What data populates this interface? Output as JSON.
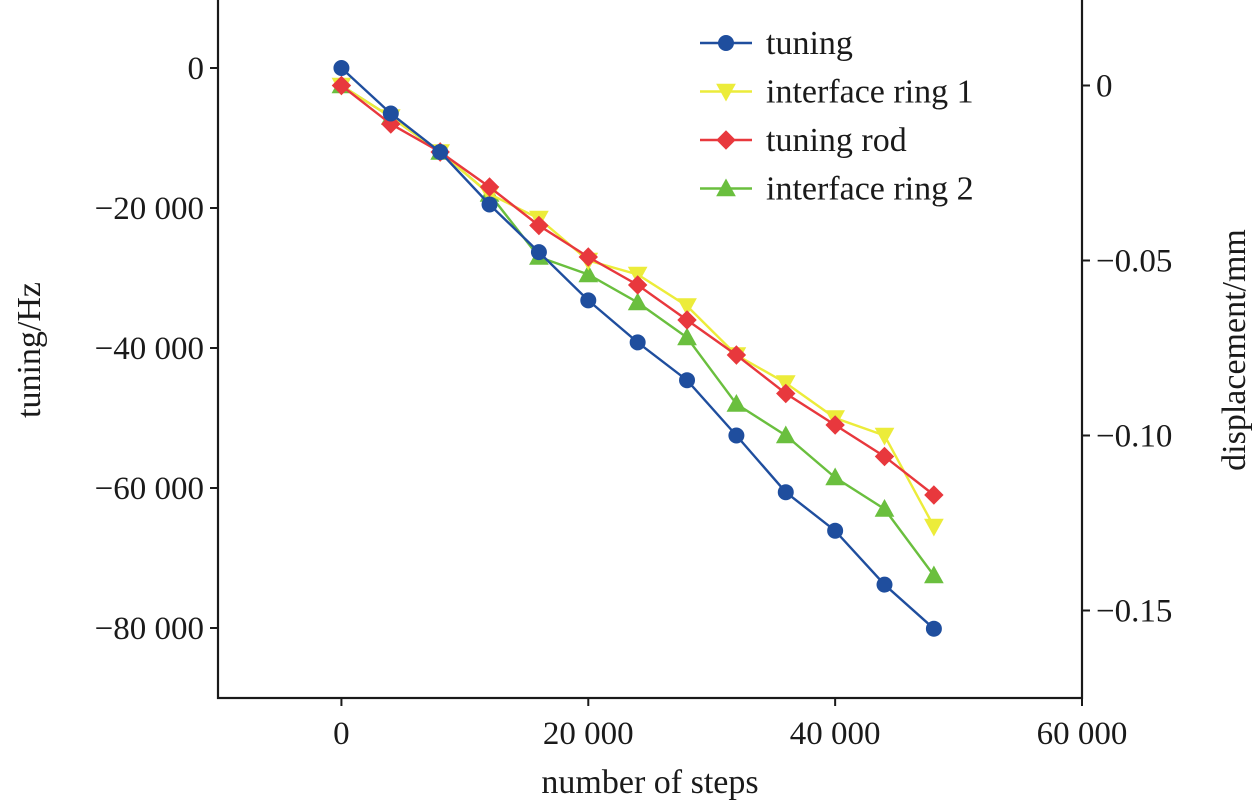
{
  "chart_data": {
    "type": "line",
    "xlabel": "number of steps",
    "ylabel_left": "tuning/Hz",
    "ylabel_right": "displacement/mm",
    "xlim": [
      -10000,
      60000
    ],
    "ylim_left": [
      -90000,
      10000
    ],
    "ylim_right": [
      -0.175,
      0.025
    ],
    "x_ticks": [
      {
        "value": 0,
        "label": "0"
      },
      {
        "value": 20000,
        "label": "20 000"
      },
      {
        "value": 40000,
        "label": "40 000"
      },
      {
        "value": 60000,
        "label": "60 000"
      }
    ],
    "y_left_ticks": [
      {
        "value": 0,
        "label": "0"
      },
      {
        "value": -20000,
        "label": "−20 000"
      },
      {
        "value": -40000,
        "label": "−40 000"
      },
      {
        "value": -60000,
        "label": "−60 000"
      },
      {
        "value": -80000,
        "label": "−80 000"
      }
    ],
    "y_right_ticks": [
      {
        "value": 0,
        "label": "0"
      },
      {
        "value": -0.05,
        "label": "−0.05"
      },
      {
        "value": -0.1,
        "label": "−0.10"
      },
      {
        "value": -0.15,
        "label": "−0.15"
      }
    ],
    "grid": false,
    "legend_position": "top-right",
    "x": [
      0,
      4000,
      8000,
      12000,
      16000,
      20000,
      24000,
      28000,
      32000,
      36000,
      40000,
      44000,
      48000
    ],
    "series": [
      {
        "name": "tuning",
        "axis": "left",
        "color": "#1f4e9e",
        "marker": "circle",
        "values": [
          0,
          -6500,
          -12000,
          -19500,
          -26300,
          -33200,
          -39200,
          -44600,
          -52500,
          -60600,
          -66100,
          -73800,
          -80100
        ]
      },
      {
        "name": "interface ring 1",
        "axis": "right",
        "color": "#ecec3a",
        "marker": "triangle-down",
        "values": [
          0,
          -0.009,
          -0.019,
          -0.031,
          -0.038,
          -0.05,
          -0.054,
          -0.063,
          -0.077,
          -0.085,
          -0.095,
          -0.1,
          -0.126
        ]
      },
      {
        "name": "tuning rod",
        "axis": "right",
        "color": "#e8383d",
        "marker": "diamond",
        "values": [
          0,
          -0.011,
          -0.019,
          -0.029,
          -0.04,
          -0.049,
          -0.057,
          -0.067,
          -0.077,
          -0.088,
          -0.097,
          -0.106,
          -0.117
        ]
      },
      {
        "name": "interface ring 2",
        "axis": "right",
        "color": "#6abf3e",
        "marker": "triangle-up",
        "values": [
          0,
          -0.009,
          -0.019,
          -0.031,
          -0.049,
          -0.054,
          -0.062,
          -0.072,
          -0.091,
          -0.1,
          -0.112,
          -0.121,
          -0.14
        ]
      }
    ]
  }
}
